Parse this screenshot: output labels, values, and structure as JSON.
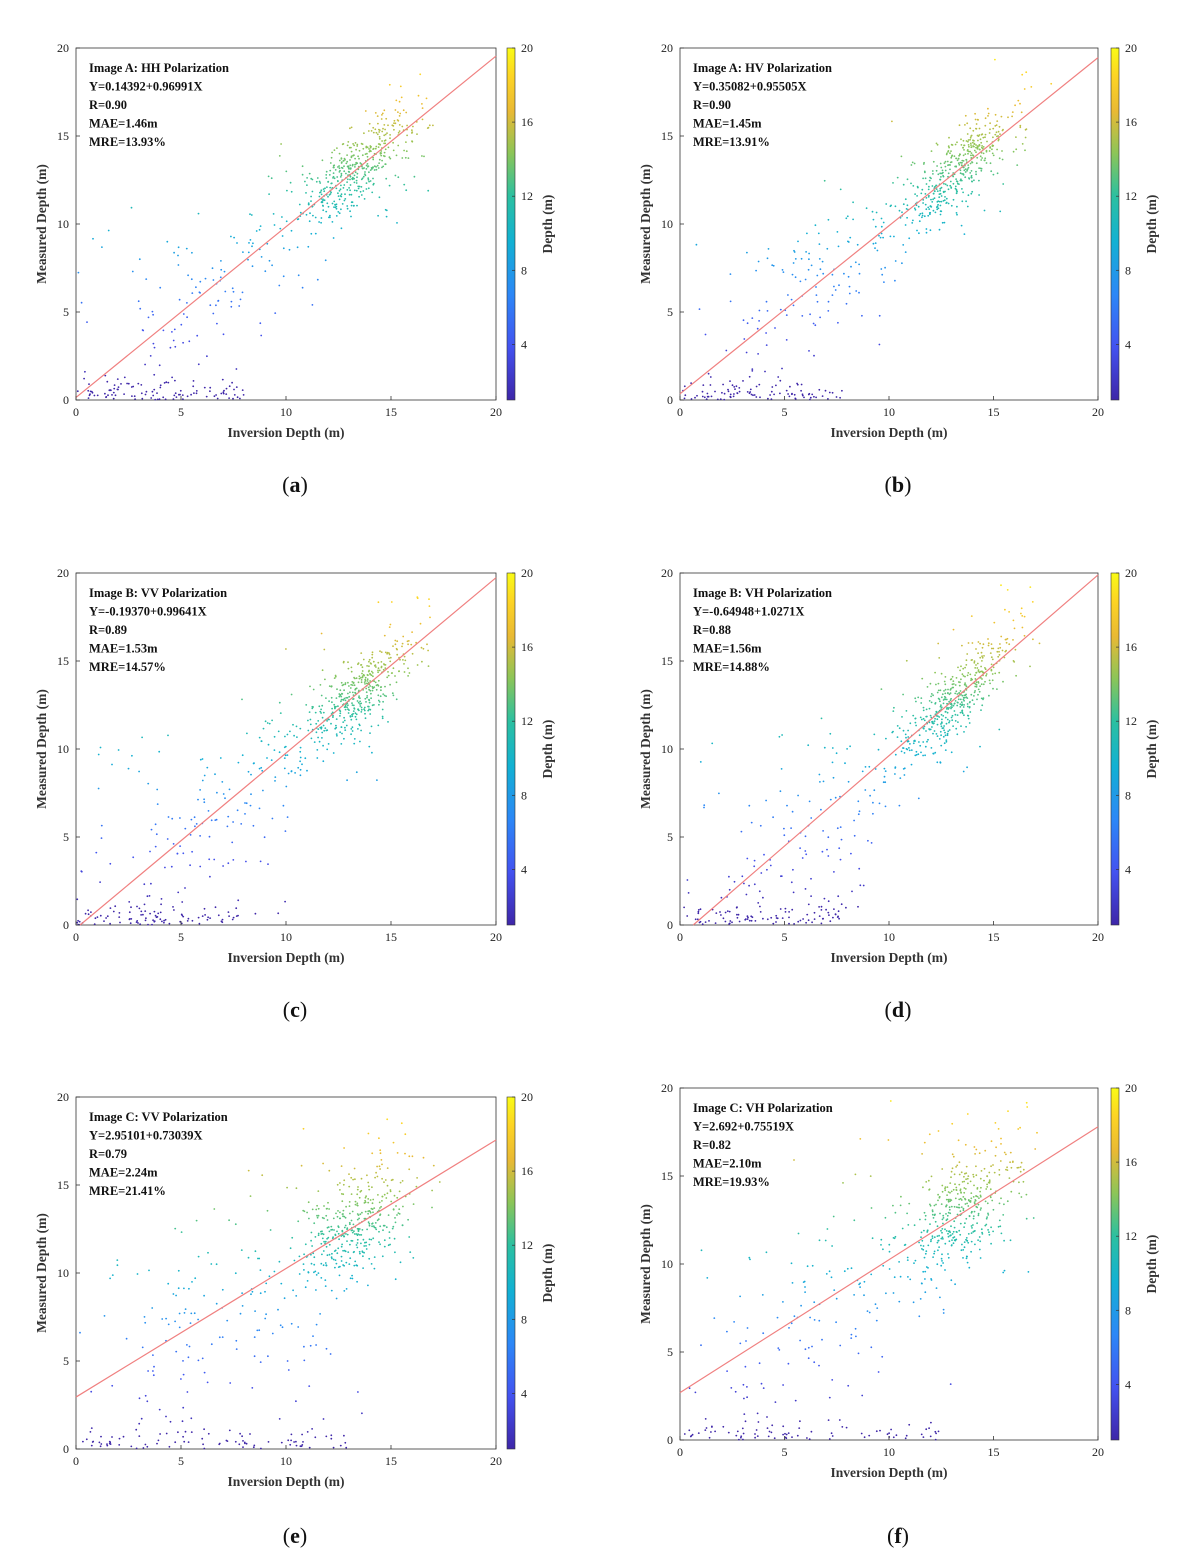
{
  "chart_data": [
    {
      "type": "scatter",
      "panel": "a",
      "caption_letter": "a",
      "title_lines": [
        "Image A: HH Polarization",
        "Y=0.14392+0.96991X",
        "R=0.90",
        "MAE=1.46m",
        "MRE=13.93%"
      ],
      "xlabel": "Inversion Depth (m)",
      "ylabel": "Measured Depth (m)",
      "colorbar_label": "Depth (m)",
      "xlim": [
        0,
        20
      ],
      "ylim": [
        0,
        20
      ],
      "xticks": [
        0,
        5,
        10,
        15,
        20
      ],
      "yticks": [
        0,
        5,
        10,
        15,
        20
      ],
      "colorbar_ticks": [
        4,
        8,
        12,
        16,
        20
      ],
      "colorbar_range": [
        1,
        20
      ],
      "fit_line": {
        "intercept": 0.14392,
        "slope": 0.96991,
        "color": "#f08080"
      },
      "point_count": 700
    },
    {
      "type": "scatter",
      "panel": "b",
      "caption_letter": "b",
      "title_lines": [
        "Image A: HV Polarization",
        "Y=0.35082+0.95505X",
        "R=0.90",
        "MAE=1.45m",
        "MRE=13.91%"
      ],
      "xlabel": "Inversion Depth (m)",
      "ylabel": "Measured Depth (m)",
      "colorbar_label": "Depth (m)",
      "xlim": [
        0,
        20
      ],
      "ylim": [
        0,
        20
      ],
      "xticks": [
        0,
        5,
        10,
        15,
        20
      ],
      "yticks": [
        0,
        5,
        10,
        15,
        20
      ],
      "colorbar_ticks": [
        4,
        8,
        12,
        16,
        20
      ],
      "colorbar_range": [
        1,
        20
      ],
      "fit_line": {
        "intercept": 0.35082,
        "slope": 0.95505,
        "color": "#f08080"
      },
      "point_count": 700
    },
    {
      "type": "scatter",
      "panel": "c",
      "caption_letter": "c",
      "title_lines": [
        "Image B: VV Polarization",
        "Y=-0.19370+0.99641X",
        "R=0.89",
        "MAE=1.53m",
        "MRE=14.57%"
      ],
      "xlabel": "Inversion Depth (m)",
      "ylabel": "Measured Depth (m)",
      "colorbar_label": "Depth (m)",
      "xlim": [
        0,
        20
      ],
      "ylim": [
        0,
        20
      ],
      "xticks": [
        0,
        5,
        10,
        15,
        20
      ],
      "yticks": [
        0,
        5,
        10,
        15,
        20
      ],
      "colorbar_ticks": [
        4,
        8,
        12,
        16,
        20
      ],
      "colorbar_range": [
        1,
        20
      ],
      "fit_line": {
        "intercept": -0.1937,
        "slope": 0.99641,
        "color": "#f08080"
      },
      "point_count": 700
    },
    {
      "type": "scatter",
      "panel": "d",
      "caption_letter": "d",
      "title_lines": [
        "Image B: VH Polarization",
        "Y=-0.64948+1.0271X",
        "R=0.88",
        "MAE=1.56m",
        "MRE=14.88%"
      ],
      "xlabel": "Inversion Depth (m)",
      "ylabel": "Measured Depth (m)",
      "colorbar_label": "Depth (m)",
      "xlim": [
        0,
        20
      ],
      "ylim": [
        0,
        20
      ],
      "xticks": [
        0,
        5,
        10,
        15,
        20
      ],
      "yticks": [
        0,
        5,
        10,
        15,
        20
      ],
      "colorbar_ticks": [
        4,
        8,
        12,
        16,
        20
      ],
      "colorbar_range": [
        1,
        20
      ],
      "fit_line": {
        "intercept": -0.64948,
        "slope": 1.0271,
        "color": "#f08080"
      },
      "point_count": 700
    },
    {
      "type": "scatter",
      "panel": "e",
      "caption_letter": "e",
      "title_lines": [
        "Image C: VV Polarization",
        "Y=2.95101+0.73039X",
        "R=0.79",
        "MAE=2.24m",
        "MRE=21.41%"
      ],
      "xlabel": "Inversion Depth (m)",
      "ylabel": "Measured Depth (m)",
      "colorbar_label": "Depth (m)",
      "xlim": [
        0,
        20
      ],
      "ylim": [
        0,
        20
      ],
      "xticks": [
        0,
        5,
        10,
        15,
        20
      ],
      "yticks": [
        0,
        5,
        10,
        15,
        20
      ],
      "colorbar_ticks": [
        4,
        8,
        12,
        16,
        20
      ],
      "colorbar_range": [
        1,
        20
      ],
      "fit_line": {
        "intercept": 2.95101,
        "slope": 0.73039,
        "color": "#f08080"
      },
      "point_count": 650
    },
    {
      "type": "scatter",
      "panel": "f",
      "caption_letter": "f",
      "title_lines": [
        "Image C: VH Polarization",
        "Y=2.692+0.75519X",
        "R=0.82",
        "MAE=2.10m",
        "MRE=19.93%"
      ],
      "xlabel": "Inversion Depth (m)",
      "ylabel": "Measured Depth (m)",
      "colorbar_label": "Depth (m)",
      "xlim": [
        0,
        20
      ],
      "ylim": [
        0,
        20
      ],
      "xticks": [
        0,
        5,
        10,
        15,
        20
      ],
      "yticks": [
        0,
        5,
        10,
        15,
        20
      ],
      "colorbar_ticks": [
        4,
        8,
        12,
        16,
        20
      ],
      "colorbar_range": [
        1,
        20
      ],
      "fit_line": {
        "intercept": 2.692,
        "slope": 0.75519,
        "color": "#f08080"
      },
      "point_count": 650
    }
  ]
}
